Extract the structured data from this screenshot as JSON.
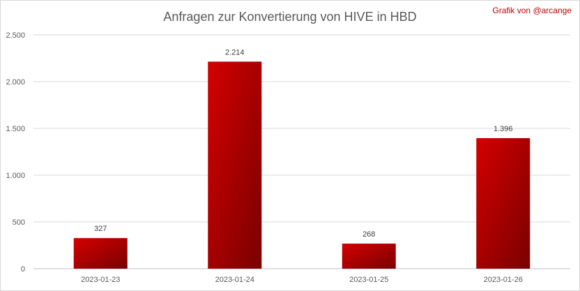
{
  "header": {
    "title": "Anfragen zur Konvertierung von HIVE in HBD",
    "credit": "Grafik von @arcange"
  },
  "chart_data": {
    "type": "bar",
    "title": "Anfragen zur Konvertierung von HIVE in HBD",
    "categories": [
      "2023-01-23",
      "2023-01-24",
      "2023-01-25",
      "2023-01-26"
    ],
    "values": [
      327,
      2214,
      268,
      1396
    ],
    "value_labels": [
      "327",
      "2.214",
      "268",
      "1.396"
    ],
    "ylim": [
      0,
      2500
    ],
    "yticks": [
      0,
      500,
      1000,
      1500,
      2000,
      2500
    ],
    "ytick_labels": [
      "0",
      "500",
      "1.000",
      "1.500",
      "2.000",
      "2.500"
    ],
    "grid": true,
    "legend": "none",
    "colors": {
      "bar_light": "#d40000",
      "bar_dark": "#7a0000",
      "grid": "#d9d9d9",
      "axis": "#bfbfbf"
    }
  }
}
